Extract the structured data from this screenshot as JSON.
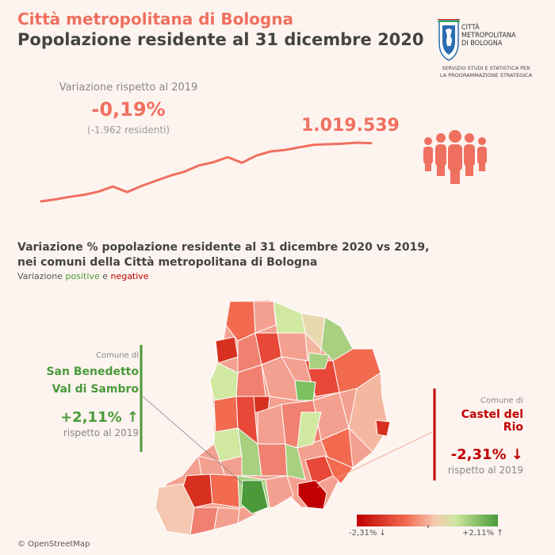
{
  "header": {
    "title": "Città metropolitana di Bologna",
    "subtitle": "Popolazione residente al 31 dicembre 2020"
  },
  "logo": {
    "lines": [
      "CITTÀ",
      "METROPOLITANA",
      "DI BOLOGNA"
    ],
    "subtitle_lines": [
      "SERVIZIO STUDI E STATISTICA PER",
      "LA PROGRAMMAZIONE STRATEGICA"
    ]
  },
  "kpi": {
    "variation_label": "Variazione rispetto al 2019",
    "variation_value": "-0,19%",
    "variation_residents": "(-1.962 residenti)",
    "total_population": "1.019.539",
    "icon": "people-group-icon",
    "trend": [
      0.0,
      0.04,
      0.09,
      0.13,
      0.19,
      0.29,
      0.18,
      0.3,
      0.4,
      0.5,
      0.58,
      0.7,
      0.76,
      0.86,
      0.75,
      0.89,
      0.97,
      1.0,
      1.05,
      1.1,
      1.11,
      1.12,
      1.14,
      1.13
    ]
  },
  "map_section": {
    "title_line1": "Variazione % popolazione residente al 31 dicembre 2020 vs 2019,",
    "title_line2": "nei comuni della Città metropolitana di Bologna",
    "sub_prefix": "Variazione",
    "sub_pos": "positive",
    "sub_and": "e",
    "sub_neg": "negative"
  },
  "callouts": {
    "max": {
      "label": "Comune di",
      "name_line1": "San Benedetto",
      "name_line2": "Val di Sambro",
      "value": "+2,11%",
      "arrow": "↑",
      "note": "rispetto al 2019"
    },
    "min": {
      "label": "Comune di",
      "name": "Castel del Rio",
      "value": "-2,31%",
      "arrow": "↓",
      "note": "rispetto al 2019"
    }
  },
  "legend": {
    "min": "-2,31% ↓",
    "max": "+2,11% ↑",
    "colors": [
      "#c00000",
      "#f26a50",
      "#f4c8b0",
      "#d0e8a0",
      "#4a9a3a"
    ]
  },
  "credit": "© OpenStreetMap"
}
